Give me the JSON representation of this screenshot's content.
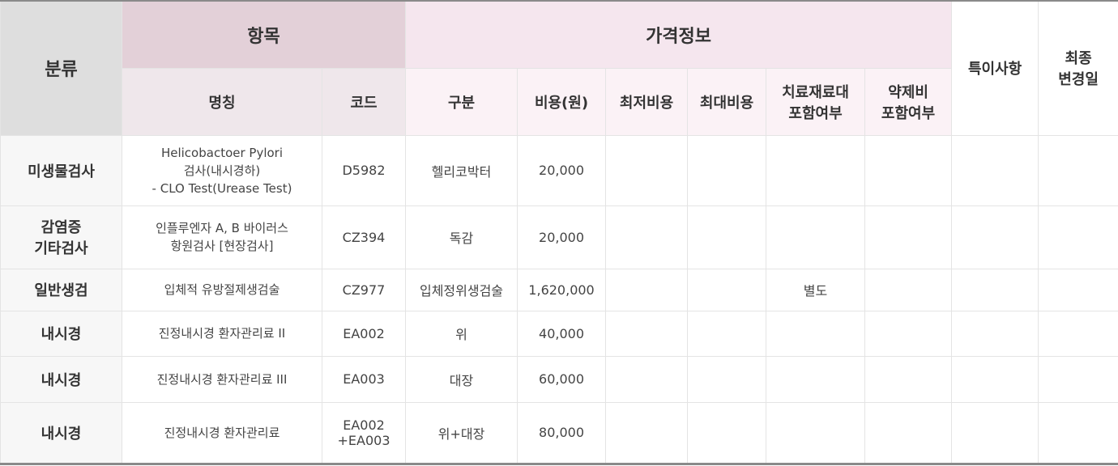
{
  "header": {
    "category": "분류",
    "item": "항목",
    "price_info": "가격정보",
    "notes": "특이사항",
    "last_modified": "최종\n변경일",
    "item_cols": [
      "명칭",
      "코드"
    ],
    "price_cols": [
      "구분",
      "비용(원)",
      "최저비용",
      "최대비용",
      "치료재료대\n포함여부",
      "약제비\n포함여부"
    ]
  },
  "rows": [
    {
      "category": "미생물검사",
      "name": "Helicobactoer Pylori\n검사(내시경하)\n- CLO Test(Urease Test)",
      "code": "D5982",
      "type": "헬리코박터",
      "cost": "20,000",
      "min": "",
      "max": "",
      "material": "",
      "drug": "",
      "notes": "",
      "modified": ""
    },
    {
      "category": "감염증\n기타검사",
      "name": "인플루엔자 A, B 바이러스\n항원검사 [현장검사]",
      "code": "CZ394",
      "type": "독감",
      "cost": "20,000",
      "min": "",
      "max": "",
      "material": "",
      "drug": "",
      "notes": "",
      "modified": ""
    },
    {
      "category": "일반생검",
      "name": "입체적 유방절제생검술",
      "code": "CZ977",
      "type": "입체정위생검술",
      "cost": "1,620,000",
      "min": "",
      "max": "",
      "material": "별도",
      "drug": "",
      "notes": "",
      "modified": ""
    },
    {
      "category": "내시경",
      "name": "진정내시경 환자관리료 II",
      "code": "EA002",
      "type": "위",
      "cost": "40,000",
      "min": "",
      "max": "",
      "material": "",
      "drug": "",
      "notes": "",
      "modified": ""
    },
    {
      "category": "내시경",
      "name": "진정내시경 환자관리료 III",
      "code": "EA003",
      "type": "대장",
      "cost": "60,000",
      "min": "",
      "max": "",
      "material": "",
      "drug": "",
      "notes": "",
      "modified": ""
    },
    {
      "category": "내시경",
      "name": "진정내시경 환자관리료",
      "code": "EA002\n+EA003",
      "type": "위+대장",
      "cost": "80,000",
      "min": "",
      "max": "",
      "material": "",
      "drug": "",
      "notes": "",
      "modified": ""
    }
  ]
}
